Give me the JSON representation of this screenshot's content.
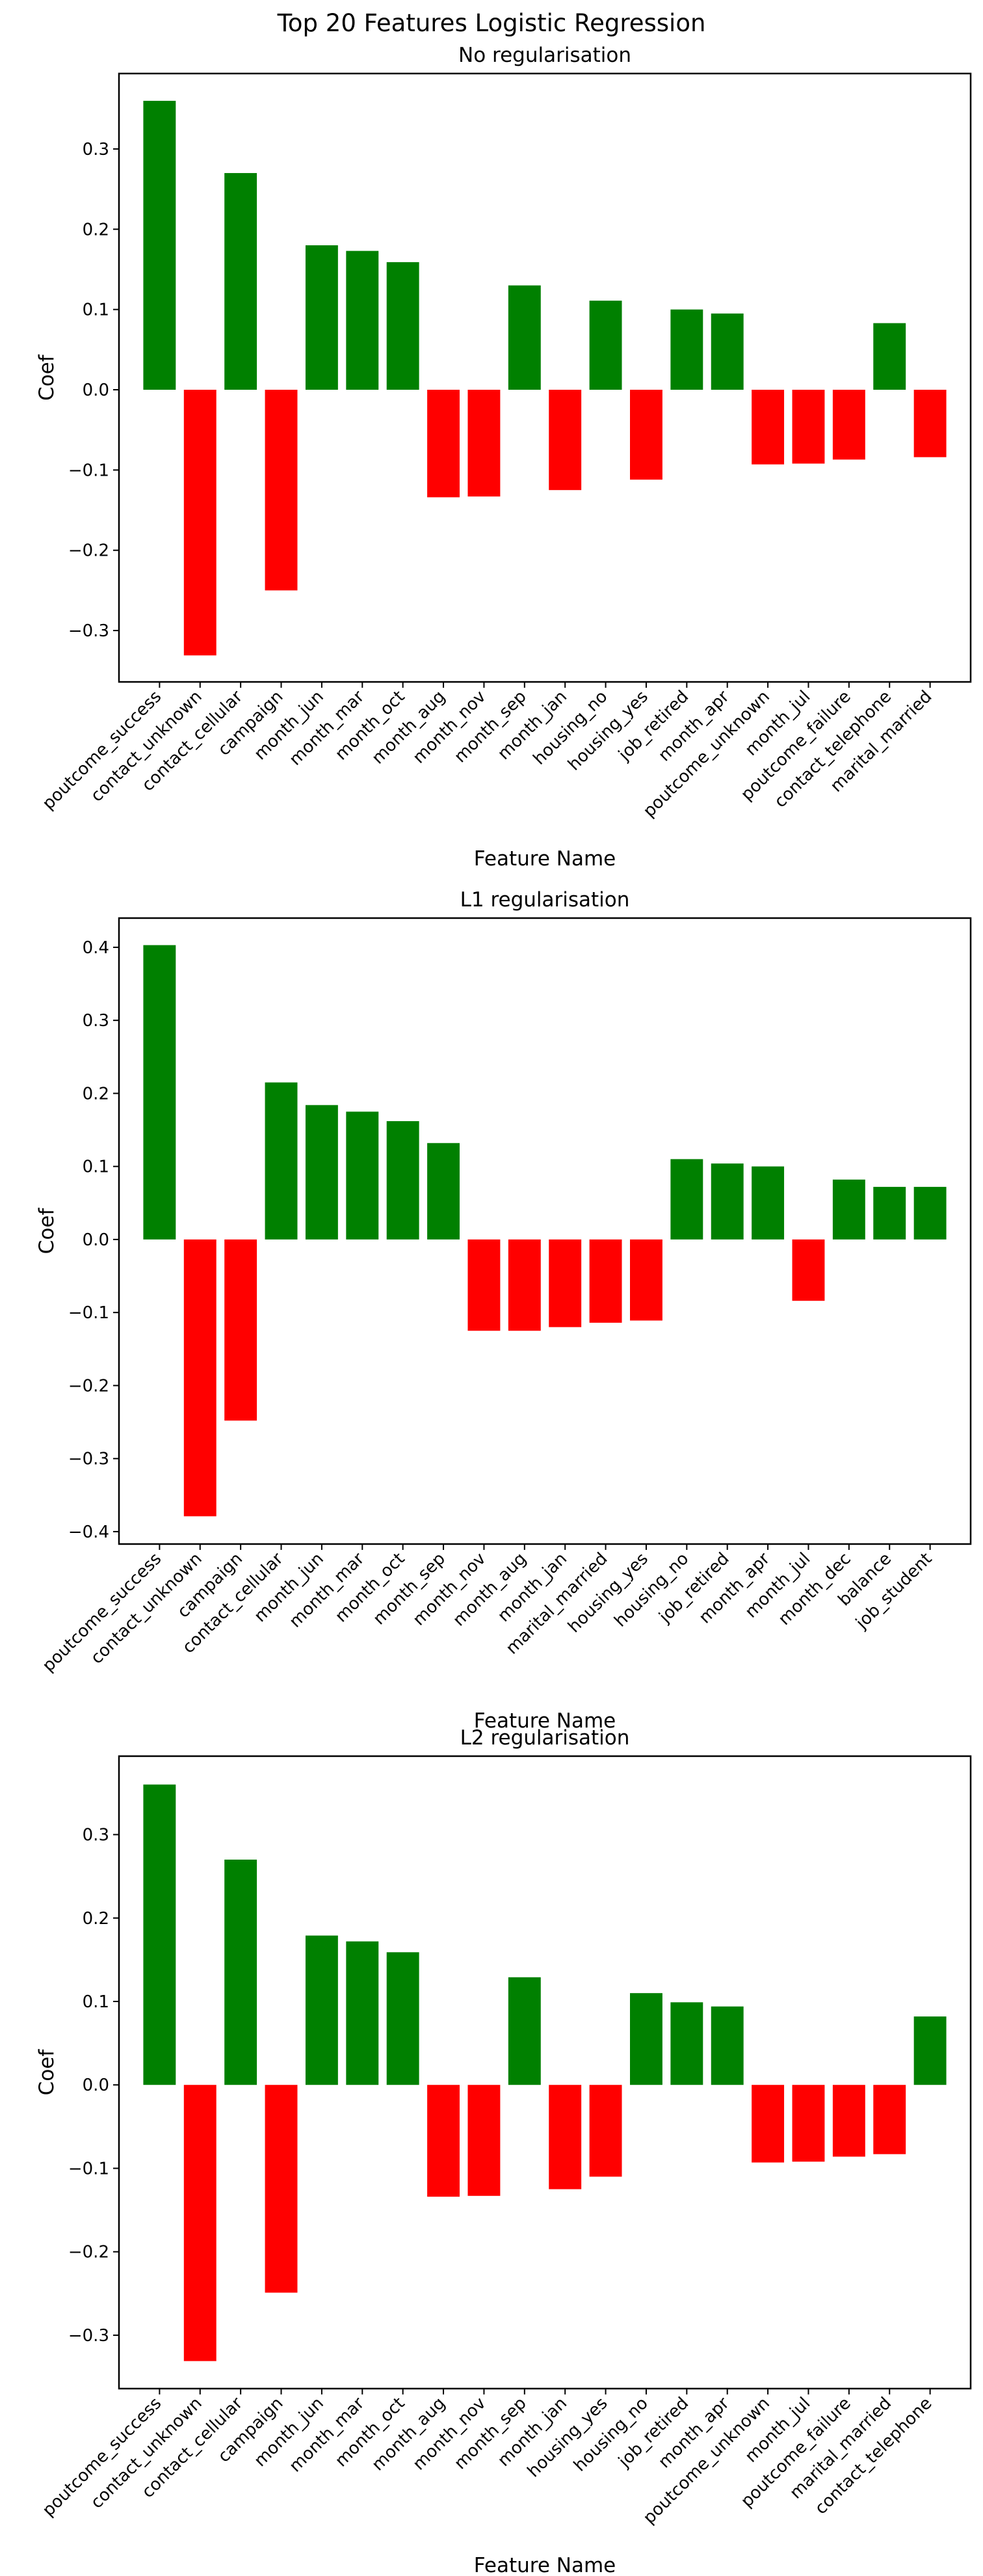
{
  "figure": {
    "suptitle": "Top 20 Features Logistic Regression",
    "colors": {
      "positive": "#008000",
      "negative": "#ff0000"
    }
  },
  "chart_data": [
    {
      "type": "bar",
      "title": "No regularisation",
      "xlabel": "Feature Name",
      "ylabel": "Coef",
      "ylim": [
        -0.364,
        0.394
      ],
      "yticks": [
        -0.3,
        -0.2,
        -0.1,
        0.0,
        0.1,
        0.2,
        0.3
      ],
      "ytick_labels": [
        "−0.3",
        "−0.2",
        "−0.1",
        "0.0",
        "0.1",
        "0.2",
        "0.3"
      ],
      "grid": false,
      "categories": [
        "poutcome_success",
        "contact_unknown",
        "contact_cellular",
        "campaign",
        "month_jun",
        "month_mar",
        "month_oct",
        "month_aug",
        "month_nov",
        "month_sep",
        "month_jan",
        "housing_no",
        "housing_yes",
        "job_retired",
        "month_apr",
        "poutcome_unknown",
        "month_jul",
        "poutcome_failure",
        "contact_telephone",
        "marital_married"
      ],
      "values": [
        0.36,
        -0.331,
        0.27,
        -0.25,
        0.18,
        0.173,
        0.159,
        -0.134,
        -0.133,
        0.13,
        -0.125,
        0.111,
        -0.112,
        0.1,
        0.095,
        -0.093,
        -0.092,
        -0.087,
        0.083,
        -0.084
      ]
    },
    {
      "type": "bar",
      "title": "L1 regularisation",
      "xlabel": "Feature Name",
      "ylabel": "Coef",
      "ylim": [
        -0.417,
        0.44
      ],
      "yticks": [
        -0.4,
        -0.3,
        -0.2,
        -0.1,
        0.0,
        0.1,
        0.2,
        0.3,
        0.4
      ],
      "ytick_labels": [
        "−0.4",
        "−0.3",
        "−0.2",
        "−0.1",
        "0.0",
        "0.1",
        "0.2",
        "0.3",
        "0.4"
      ],
      "grid": false,
      "categories": [
        "poutcome_success",
        "contact_unknown",
        "campaign",
        "contact_cellular",
        "month_jun",
        "month_mar",
        "month_oct",
        "month_sep",
        "month_nov",
        "month_aug",
        "month_jan",
        "marital_married",
        "housing_yes",
        "housing_no",
        "job_retired",
        "month_apr",
        "month_jul",
        "month_dec",
        "balance",
        "job_student"
      ],
      "values": [
        0.403,
        -0.379,
        -0.248,
        0.215,
        0.184,
        0.175,
        0.162,
        0.132,
        -0.125,
        -0.125,
        -0.12,
        -0.114,
        -0.111,
        0.11,
        0.104,
        0.1,
        -0.084,
        0.082,
        0.072,
        0.072
      ]
    },
    {
      "type": "bar",
      "title": "L2 regularisation",
      "xlabel": "Feature Name",
      "ylabel": "Coef",
      "ylim": [
        -0.364,
        0.394
      ],
      "yticks": [
        -0.3,
        -0.2,
        -0.1,
        0.0,
        0.1,
        0.2,
        0.3
      ],
      "ytick_labels": [
        "−0.3",
        "−0.2",
        "−0.1",
        "0.0",
        "0.1",
        "0.2",
        "0.3"
      ],
      "grid": false,
      "categories": [
        "poutcome_success",
        "contact_unknown",
        "contact_cellular",
        "campaign",
        "month_jun",
        "month_mar",
        "month_oct",
        "month_aug",
        "month_nov",
        "month_sep",
        "month_jan",
        "housing_yes",
        "housing_no",
        "job_retired",
        "month_apr",
        "poutcome_unknown",
        "month_jul",
        "poutcome_failure",
        "marital_married",
        "contact_telephone"
      ],
      "values": [
        0.36,
        -0.331,
        0.27,
        -0.249,
        0.179,
        0.172,
        0.159,
        -0.134,
        -0.133,
        0.129,
        -0.125,
        -0.11,
        0.11,
        0.099,
        0.094,
        -0.093,
        -0.092,
        -0.086,
        -0.083,
        0.082
      ]
    }
  ]
}
